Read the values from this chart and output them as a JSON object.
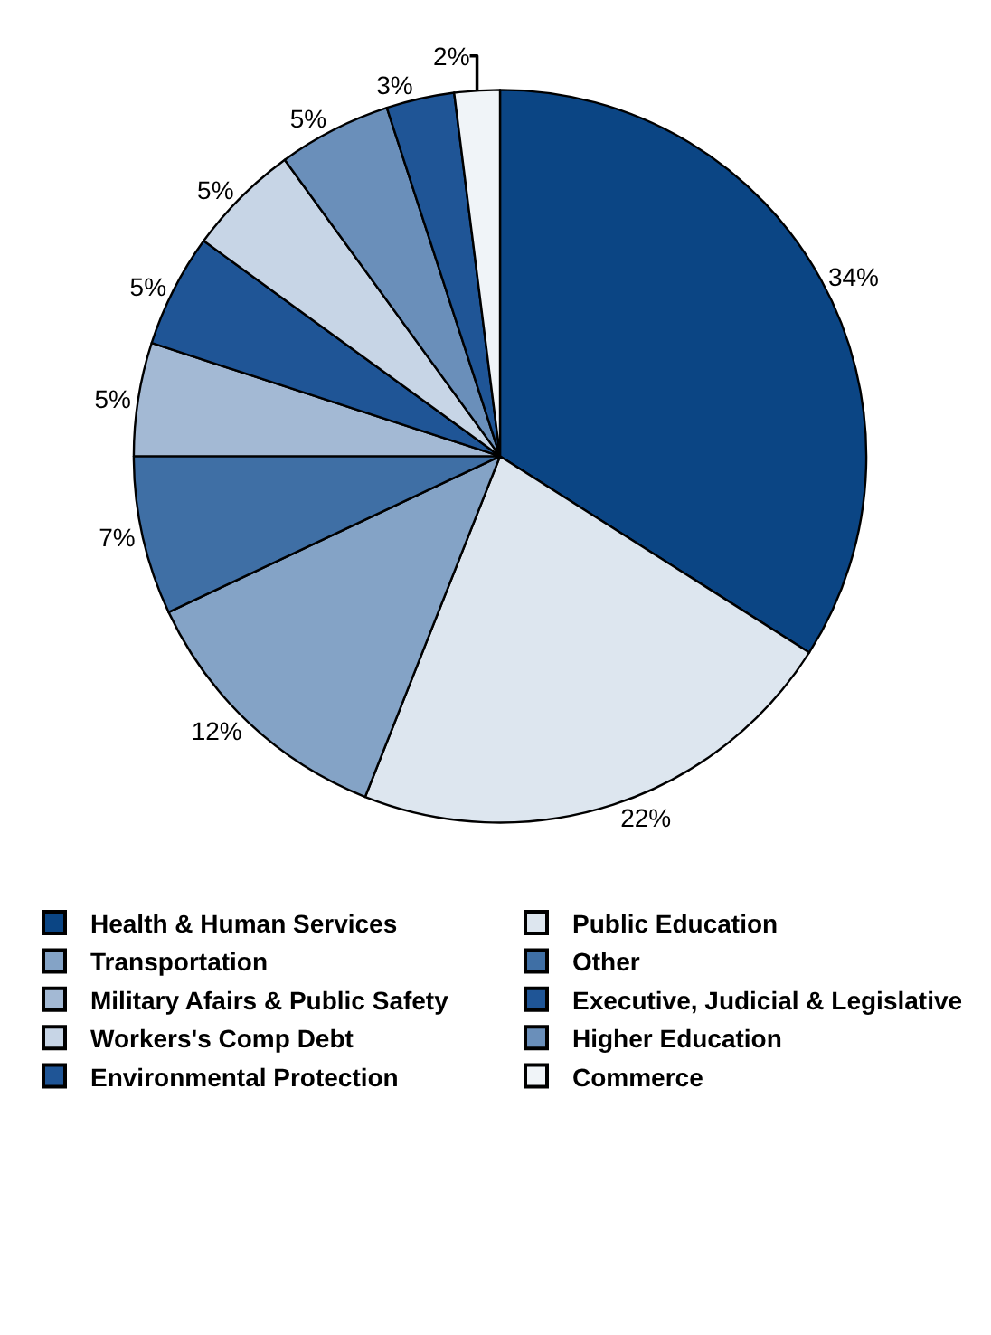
{
  "chart_data": {
    "type": "pie",
    "categories": [
      "Health & Human Services",
      "Public Education",
      "Transportation",
      "Other",
      "Military Afairs & Public Safety",
      "Executive, Judicial & Legislative",
      "Workers's Comp Debt",
      "Higher Education",
      "Environmental Protection",
      "Commerce"
    ],
    "values": [
      34,
      22,
      12,
      7,
      5,
      5,
      5,
      5,
      3,
      2
    ],
    "value_labels": [
      "34%",
      "22%",
      "12%",
      "7%",
      "5%",
      "5%",
      "5%",
      "5%",
      "3%",
      "2%"
    ],
    "colors": [
      "#0b4584",
      "#dde6ef",
      "#84a3c6",
      "#3f6fa5",
      "#a3b9d4",
      "#1f5596",
      "#c7d5e6",
      "#6a8fba",
      "#1f5596",
      "#f0f4f8"
    ],
    "legend": "bottom"
  }
}
